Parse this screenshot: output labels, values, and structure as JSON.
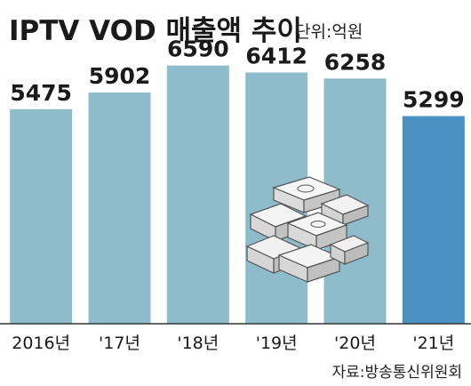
{
  "title": "IPTV VOD 매출액 추이",
  "unit": "단위:억원",
  "source": "자료:방송통신위원회",
  "colors": {
    "bar": "#8fbccb",
    "highlight": "#4a90c2",
    "text": "#1a1a1a"
  },
  "chart_data": {
    "type": "bar",
    "categories": [
      "2016년",
      "'17년",
      "'18년",
      "'19년",
      "'20년",
      "'21년"
    ],
    "values": [
      5475,
      5902,
      6590,
      6412,
      6258,
      5299
    ],
    "value_labels": [
      "5475",
      "5902",
      "6590",
      "6412",
      "6258",
      "5299"
    ],
    "highlight_index": 5,
    "ylim": [
      0,
      6900
    ],
    "grid": false,
    "legend": "none"
  }
}
